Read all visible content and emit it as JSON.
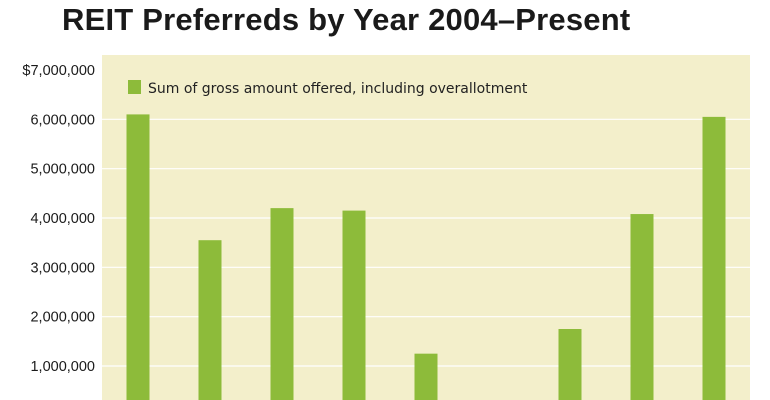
{
  "chart_data": {
    "type": "bar",
    "title": "REIT Preferreds by Year 2004–Present",
    "categories": [
      "",
      "",
      "",
      "",
      "",
      "",
      "",
      "",
      ""
    ],
    "series": [
      {
        "name": "Sum of gross amount offered, including overallotment",
        "values": [
          6100000,
          3550000,
          4200000,
          4150000,
          1250000,
          0,
          1750000,
          4080000,
          6050000
        ]
      }
    ],
    "bar_slots": 9,
    "ylim": [
      0,
      7000000
    ],
    "yticks": [
      {
        "value": 7000000,
        "label": "$7,000,000"
      },
      {
        "value": 6000000,
        "label": "6,000,000"
      },
      {
        "value": 5000000,
        "label": "5,000,000"
      },
      {
        "value": 4000000,
        "label": "4,000,000"
      },
      {
        "value": 3000000,
        "label": "3,000,000"
      },
      {
        "value": 2000000,
        "label": "2,000,000"
      },
      {
        "value": 1000000,
        "label": "1,000,000"
      }
    ],
    "xlabel": "",
    "ylabel": "",
    "grid": true,
    "legend_position": "top-left",
    "colors": {
      "bar": "#8dbb3a",
      "plot_background": "#f3efcb",
      "grid": "#ffffff",
      "text": "#1a1a1a"
    }
  }
}
